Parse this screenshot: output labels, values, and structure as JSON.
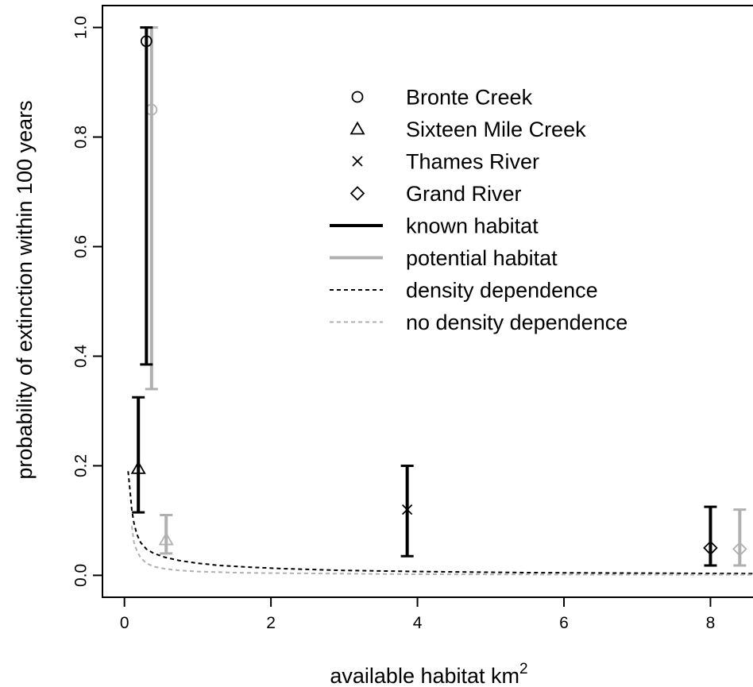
{
  "chart_data": {
    "type": "scatter",
    "xlabel": "available habitat km",
    "xlabel_superscript": "2",
    "ylabel": "probability of extinction within 100 years",
    "xlim": [
      -0.3,
      8.7
    ],
    "ylim": [
      -0.04,
      1.04
    ],
    "xticks": [
      0,
      2,
      4,
      6,
      8
    ],
    "xtick_labels": [
      "0",
      "2",
      "4",
      "6",
      "8"
    ],
    "yticks": [
      0.0,
      0.2,
      0.4,
      0.6,
      0.8,
      1.0
    ],
    "ytick_labels": [
      "0.0",
      "0.2",
      "0.4",
      "0.6",
      "0.8",
      "1.0"
    ],
    "grid": false,
    "legend_position": "top-right",
    "legend": [
      {
        "label": "Bronte Creek",
        "symbol": "circle"
      },
      {
        "label": "Sixteen Mile Creek",
        "symbol": "triangle"
      },
      {
        "label": "Thames River",
        "symbol": "cross"
      },
      {
        "label": "Grand River",
        "symbol": "diamond"
      },
      {
        "label": "known habitat",
        "line": "solid",
        "color": "#000000"
      },
      {
        "label": "potential habitat",
        "line": "solid",
        "color": "#b0b0b0"
      },
      {
        "label": "density dependence",
        "line": "dashed",
        "color": "#000000"
      },
      {
        "label": "no density dependence",
        "line": "dashed",
        "color": "#b0b0b0"
      }
    ],
    "points": [
      {
        "river": "Bronte Creek",
        "symbol": "circle",
        "habitat": "potential",
        "x": 0.37,
        "y": 0.85,
        "low": 0.34,
        "high": 1.0,
        "color": "#b0b0b0"
      },
      {
        "river": "Bronte Creek",
        "symbol": "circle",
        "habitat": "known",
        "x": 0.3,
        "y": 0.975,
        "low": 0.385,
        "high": 1.0,
        "color": "#000000"
      },
      {
        "river": "Sixteen Mile Creek",
        "symbol": "triangle",
        "habitat": "potential",
        "x": 0.57,
        "y": 0.065,
        "low": 0.04,
        "high": 0.11,
        "color": "#b0b0b0"
      },
      {
        "river": "Sixteen Mile Creek",
        "symbol": "triangle",
        "habitat": "known",
        "x": 0.19,
        "y": 0.195,
        "low": 0.115,
        "high": 0.325,
        "color": "#000000"
      },
      {
        "river": "Thames River",
        "symbol": "cross",
        "habitat": "known",
        "x": 3.86,
        "y": 0.12,
        "low": 0.035,
        "high": 0.2,
        "color": "#000000"
      },
      {
        "river": "Grand River",
        "symbol": "diamond",
        "habitat": "known",
        "x": 8.0,
        "y": 0.05,
        "low": 0.018,
        "high": 0.125,
        "color": "#000000"
      },
      {
        "river": "Grand River",
        "symbol": "diamond",
        "habitat": "potential",
        "x": 8.4,
        "y": 0.048,
        "low": 0.018,
        "high": 0.12,
        "color": "#b0b0b0"
      }
    ],
    "curves": [
      {
        "name": "density dependence",
        "color": "#000000",
        "dash": true,
        "x": [
          0.05,
          0.08,
          0.1,
          0.13,
          0.17,
          0.22,
          0.3,
          0.4,
          0.55,
          0.75,
          1.0,
          1.3,
          1.7,
          2.2,
          3.0,
          4.0,
          5.5,
          7.0,
          8.7
        ],
        "y": [
          0.19,
          0.15,
          0.12,
          0.095,
          0.075,
          0.06,
          0.048,
          0.04,
          0.033,
          0.027,
          0.022,
          0.018,
          0.015,
          0.012,
          0.009,
          0.007,
          0.005,
          0.004,
          0.003
        ]
      },
      {
        "name": "no density dependence",
        "color": "#b0b0b0",
        "dash": true,
        "x": [
          0.1,
          0.13,
          0.17,
          0.22,
          0.3,
          0.4,
          0.55,
          0.75,
          1.0,
          1.5,
          2.0,
          3.0,
          4.0,
          6.0,
          8.7
        ],
        "y": [
          0.09,
          0.06,
          0.045,
          0.032,
          0.022,
          0.016,
          0.012,
          0.009,
          0.007,
          0.005,
          0.004,
          0.003,
          0.002,
          0.0015,
          0.001
        ]
      }
    ]
  }
}
